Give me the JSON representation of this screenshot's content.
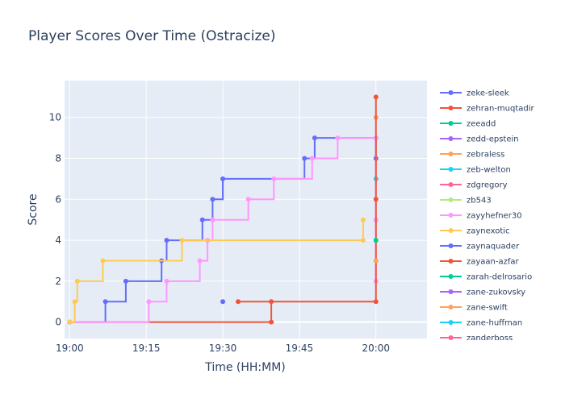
{
  "chart_data": {
    "type": "line",
    "line_shape": "step",
    "title": "Player Scores Over Time (Ostracize)",
    "xlabel": "Time (HH:MM)",
    "ylabel": "Score",
    "x_ticks": [
      "19:00",
      "19:15",
      "19:30",
      "19:45",
      "20:00"
    ],
    "y_ticks": [
      0,
      2,
      4,
      6,
      8,
      10
    ],
    "xlim": [
      "18:59",
      "20:10"
    ],
    "ylim": [
      -0.8,
      11.8
    ],
    "grid": true,
    "legend_position": "right",
    "plot_background": "#e5ecf6",
    "series": [
      {
        "name": "zeke-sleek",
        "color": "#636efa",
        "points": [
          [
            "19:00",
            0
          ],
          [
            "19:07",
            1
          ],
          [
            "19:11",
            2
          ],
          [
            "19:18",
            3
          ],
          [
            "19:19",
            4
          ],
          [
            "19:26",
            5
          ],
          [
            "19:28",
            6
          ],
          [
            "19:30",
            7
          ],
          [
            "19:46",
            8
          ],
          [
            "19:48",
            9
          ],
          [
            "20:00",
            9
          ],
          [
            "20:00",
            8
          ]
        ]
      },
      {
        "name": "zehran-muqtadir",
        "color": "#ef553b",
        "points": [
          [
            "19:00",
            0
          ],
          [
            "19:39.5",
            0
          ],
          [
            "19:39.5",
            1
          ]
        ]
      },
      {
        "name": "zeeadd",
        "color": "#00cc96",
        "points": []
      },
      {
        "name": "zedd-epstein",
        "color": "#ab63fa",
        "points": []
      },
      {
        "name": "zebraless",
        "color": "#ffa15a",
        "points": [
          [
            "20:00",
            10
          ]
        ]
      },
      {
        "name": "zeb-welton",
        "color": "#19d3f3",
        "points": [
          [
            "20:00",
            7
          ]
        ]
      },
      {
        "name": "zdgregory",
        "color": "#ff6692",
        "points": []
      },
      {
        "name": "zb543",
        "color": "#b6e880",
        "points": []
      },
      {
        "name": "zayyhefner30",
        "color": "#ff97ff",
        "points": [
          [
            "19:00",
            0
          ],
          [
            "19:15.5",
            1
          ],
          [
            "19:19",
            2
          ],
          [
            "19:25.5",
            3
          ],
          [
            "19:27",
            4
          ],
          [
            "19:28",
            5
          ],
          [
            "19:35",
            6
          ],
          [
            "19:40",
            7
          ],
          [
            "19:47.5",
            8
          ],
          [
            "19:52.5",
            9
          ],
          [
            "20:00",
            9
          ],
          [
            "20:00",
            5
          ],
          [
            "20:00",
            2
          ]
        ]
      },
      {
        "name": "zaynexotic",
        "color": "#fecb52",
        "points": [
          [
            "19:00",
            0
          ],
          [
            "19:01",
            1
          ],
          [
            "19:01.5",
            2
          ],
          [
            "19:06.5",
            3
          ],
          [
            "19:22",
            4
          ],
          [
            "19:57.5",
            4
          ],
          [
            "19:57.5",
            5
          ]
        ]
      },
      {
        "name": "zaynaquader",
        "color": "#636efa",
        "points": [
          [
            "19:30",
            1
          ]
        ]
      },
      {
        "name": "zayaan-azfar",
        "color": "#ef553b",
        "points": [
          [
            "19:33",
            1
          ],
          [
            "20:00",
            11
          ],
          [
            "20:00",
            6
          ],
          [
            "20:00",
            1
          ]
        ]
      },
      {
        "name": "zarah-delrosario",
        "color": "#00cc96",
        "points": [
          [
            "20:00",
            4
          ]
        ]
      },
      {
        "name": "zane-zukovsky",
        "color": "#ab63fa",
        "points": []
      },
      {
        "name": "zane-swift",
        "color": "#ffa15a",
        "points": [
          [
            "20:00",
            3
          ]
        ]
      },
      {
        "name": "zane-huffman",
        "color": "#19d3f3",
        "points": []
      },
      {
        "name": "zanderboss",
        "color": "#ff6692",
        "points": []
      }
    ]
  }
}
